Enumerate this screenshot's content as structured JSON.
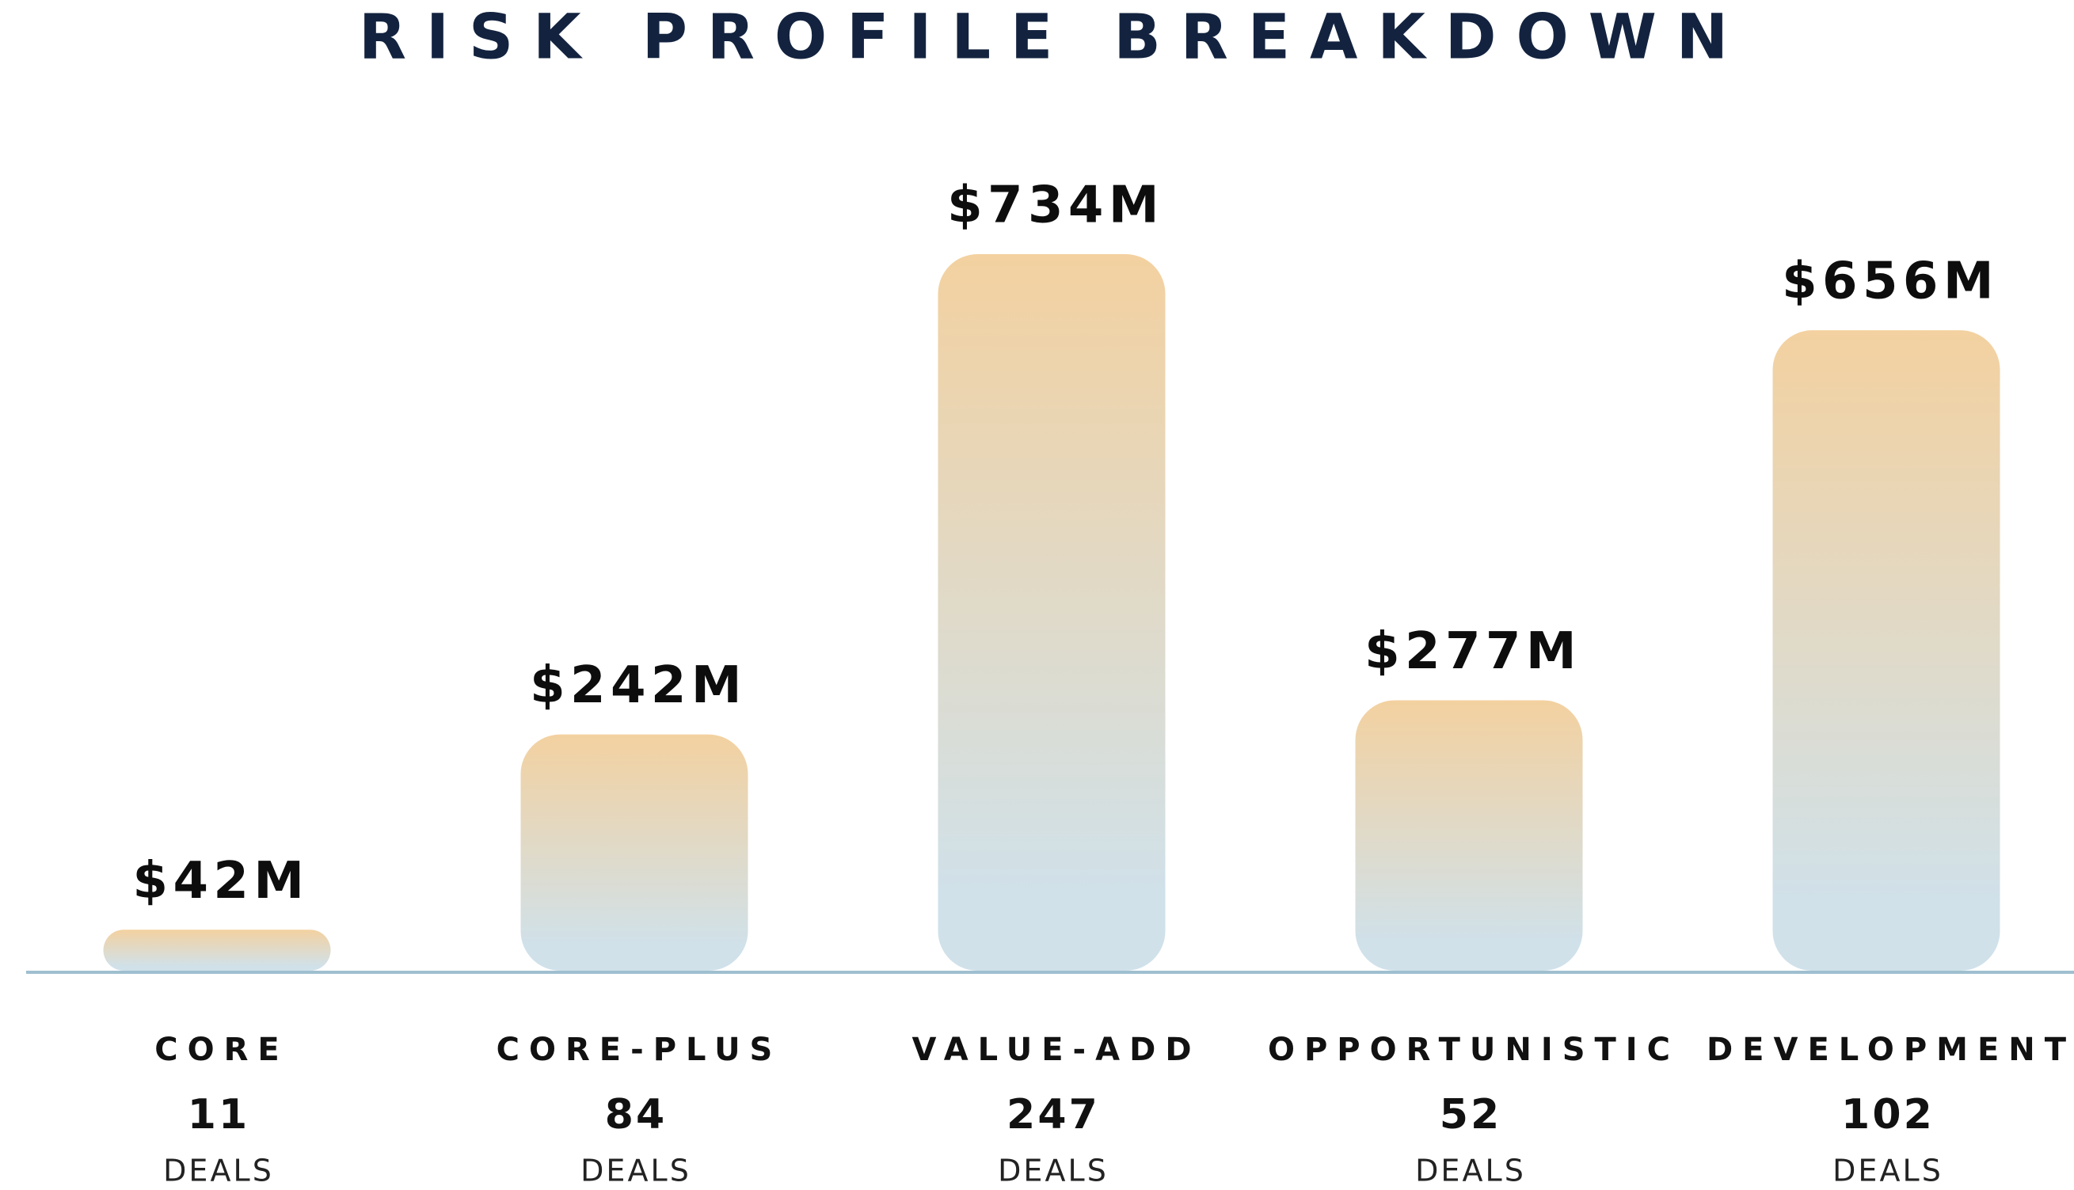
{
  "chart_data": {
    "type": "bar",
    "title": "RISK PROFILE BREAKDOWN",
    "categories": [
      "CORE",
      "CORE-PLUS",
      "VALUE-ADD",
      "OPPORTUNISTIC",
      "DEVELOPMENT"
    ],
    "values": [
      42,
      242,
      734,
      277,
      656
    ],
    "value_labels": [
      "$42M",
      "$242M",
      "$734M",
      "$277M",
      "$656M"
    ],
    "deals": [
      11,
      84,
      247,
      52,
      102
    ],
    "deals_label": "DEALS",
    "colors": [
      "#f3d1a0",
      "#d0e1ea"
    ]
  }
}
